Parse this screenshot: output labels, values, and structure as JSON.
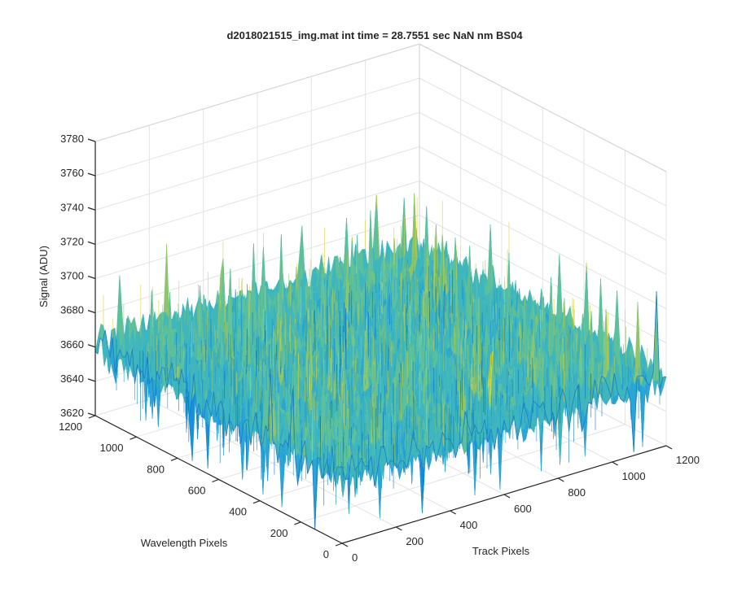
{
  "chart_data": {
    "type": "surface",
    "title": "d2018021515_img.mat int time = 28.7551 sec  NaN nm BS04",
    "xlabel": "Track Pixels",
    "ylabel": "Wavelength Pixels",
    "zlabel": "Signal (ADU)",
    "xlim": [
      0,
      1200
    ],
    "ylim": [
      0,
      1200
    ],
    "zlim": [
      3620,
      3780
    ],
    "xticks": [
      "0",
      "200",
      "400",
      "600",
      "800",
      "1000",
      "1200"
    ],
    "yticks": [
      "0",
      "200",
      "400",
      "600",
      "800",
      "1000",
      "1200"
    ],
    "zticks": [
      "3620",
      "3640",
      "3660",
      "3680",
      "3700",
      "3720",
      "3740",
      "3760",
      "3780"
    ],
    "grid": true,
    "data_extent": {
      "x": [
        0,
        1200
      ],
      "y": [
        0,
        1200
      ]
    },
    "surface_mean": 3660,
    "surface_noise_range": [
      3630,
      3695
    ],
    "colormap": [
      "#0072bd",
      "#1690d8",
      "#2aa5d6",
      "#3fb6bd",
      "#5cc09c",
      "#8fc56a",
      "#d8d22c"
    ]
  }
}
